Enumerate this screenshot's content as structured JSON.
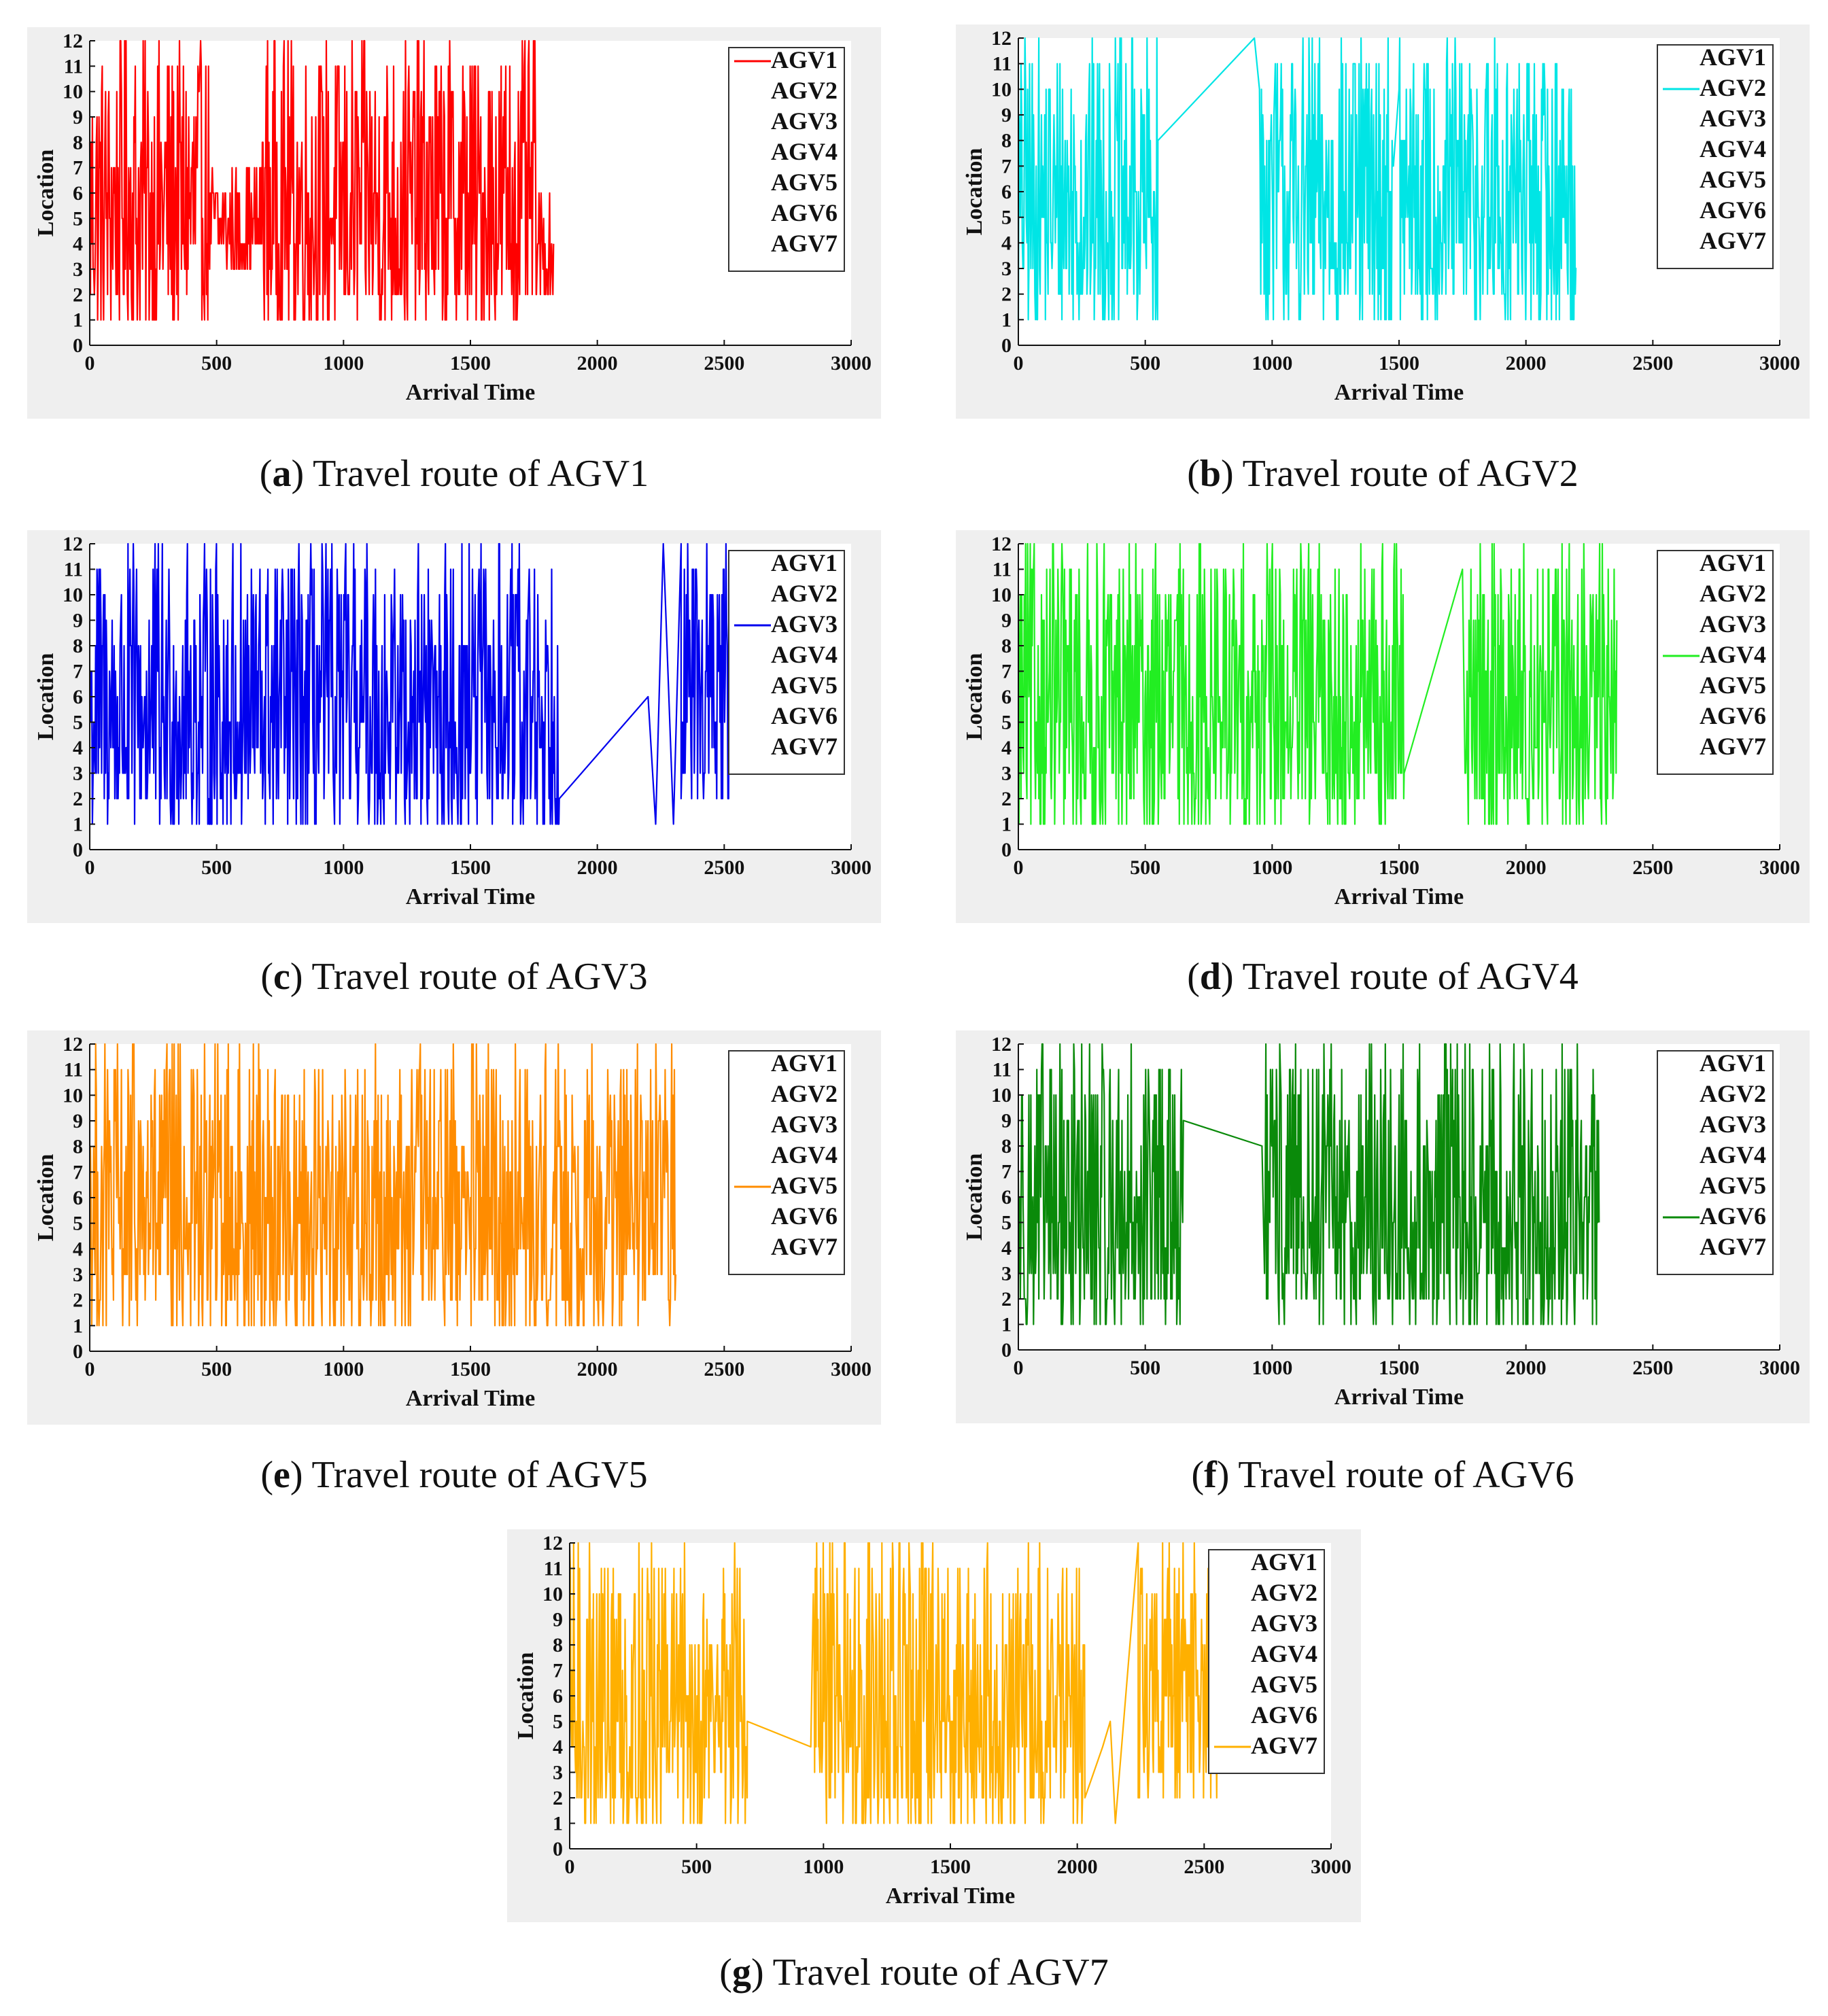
{
  "figure": {
    "captions": [
      {
        "letter": "a",
        "text": "Travel route of AGV1"
      },
      {
        "letter": "b",
        "text": "Travel route of AGV2"
      },
      {
        "letter": "c",
        "text": "Travel route of AGV3"
      },
      {
        "letter": "d",
        "text": "Travel route of AGV4"
      },
      {
        "letter": "e",
        "text": "Travel route of AGV5"
      },
      {
        "letter": "f",
        "text": "Travel route of AGV6"
      },
      {
        "letter": "g",
        "text": "Travel route of AGV7"
      }
    ]
  },
  "chart_data": [
    {
      "type": "line",
      "series_name": "AGV1",
      "color": "#ff0000",
      "xlabel": "Arrival Time",
      "ylabel": "Location",
      "xlim": [
        0,
        3000
      ],
      "ylim": [
        0,
        12
      ],
      "xticks": [
        0,
        500,
        1000,
        1500,
        2000,
        2500,
        3000
      ],
      "yticks": [
        0,
        1,
        2,
        3,
        4,
        5,
        6,
        7,
        8,
        9,
        10,
        11,
        12
      ],
      "legend": [
        "AGV1",
        "AGV2",
        "AGV3",
        "AGV4",
        "AGV5",
        "AGV6",
        "AGV7"
      ],
      "highlight": 0,
      "segments": [
        {
          "kind": "dense",
          "x_start": 0,
          "x_end": 470
        },
        {
          "kind": "dense",
          "x_start": 470,
          "x_end": 680,
          "low": 3,
          "high": 7
        },
        {
          "kind": "dense",
          "x_start": 680,
          "x_end": 1760
        },
        {
          "kind": "dense",
          "x_start": 1760,
          "x_end": 1830,
          "low": 2,
          "high": 6
        }
      ]
    },
    {
      "type": "line",
      "series_name": "AGV2",
      "color": "#00e5e5",
      "xlabel": "Arrival Time",
      "ylabel": "Location",
      "xlim": [
        0,
        3000
      ],
      "ylim": [
        0,
        12
      ],
      "xticks": [
        0,
        500,
        1000,
        1500,
        2000,
        2500,
        3000
      ],
      "yticks": [
        0,
        1,
        2,
        3,
        4,
        5,
        6,
        7,
        8,
        9,
        10,
        11,
        12
      ],
      "legend": [
        "AGV1",
        "AGV2",
        "AGV3",
        "AGV4",
        "AGV5",
        "AGV6",
        "AGV7"
      ],
      "highlight": 1,
      "segments": [
        {
          "kind": "dense",
          "x_start": 0,
          "x_end": 550
        },
        {
          "kind": "line",
          "points": [
            [
              550,
              8
            ],
            [
              930,
              12
            ]
          ]
        },
        {
          "kind": "dense",
          "x_start": 950,
          "x_end": 1480
        },
        {
          "kind": "dense",
          "x_start": 1500,
          "x_end": 2200
        }
      ]
    },
    {
      "type": "line",
      "series_name": "AGV3",
      "color": "#0000ee",
      "xlabel": "Arrival Time",
      "ylabel": "Location",
      "xlim": [
        0,
        3000
      ],
      "ylim": [
        0,
        12
      ],
      "xticks": [
        0,
        500,
        1000,
        1500,
        2000,
        2500,
        3000
      ],
      "yticks": [
        0,
        1,
        2,
        3,
        4,
        5,
        6,
        7,
        8,
        9,
        10,
        11,
        12
      ],
      "legend": [
        "AGV1",
        "AGV2",
        "AGV3",
        "AGV4",
        "AGV5",
        "AGV6",
        "AGV7"
      ],
      "highlight": 2,
      "segments": [
        {
          "kind": "dense",
          "x_start": 0,
          "x_end": 1850
        },
        {
          "kind": "line",
          "points": [
            [
              1850,
              2
            ],
            [
              2200,
              6
            ]
          ]
        },
        {
          "kind": "line",
          "points": [
            [
              2200,
              6
            ],
            [
              2230,
              1
            ],
            [
              2260,
              12
            ],
            [
              2300,
              1
            ],
            [
              2330,
              12
            ]
          ]
        },
        {
          "kind": "dense",
          "x_start": 2330,
          "x_end": 2530,
          "low": 2,
          "high": 12
        }
      ]
    },
    {
      "type": "line",
      "series_name": "AGV4",
      "color": "#22ee22",
      "xlabel": "Arrival Time",
      "ylabel": "Location",
      "xlim": [
        0,
        3000
      ],
      "ylim": [
        0,
        12
      ],
      "xticks": [
        0,
        500,
        1000,
        1500,
        2000,
        2500,
        3000
      ],
      "yticks": [
        0,
        1,
        2,
        3,
        4,
        5,
        6,
        7,
        8,
        9,
        10,
        11,
        12
      ],
      "legend": [
        "AGV1",
        "AGV2",
        "AGV3",
        "AGV4",
        "AGV5",
        "AGV6",
        "AGV7"
      ],
      "highlight": 3,
      "segments": [
        {
          "kind": "dense",
          "x_start": 0,
          "x_end": 1520
        },
        {
          "kind": "line",
          "points": [
            [
              1520,
              3
            ],
            [
              1750,
              11
            ]
          ]
        },
        {
          "kind": "dense",
          "x_start": 1760,
          "x_end": 2360
        }
      ]
    },
    {
      "type": "line",
      "series_name": "AGV5",
      "color": "#ff8c00",
      "xlabel": "Arrival Time",
      "ylabel": "Location",
      "xlim": [
        0,
        3000
      ],
      "ylim": [
        0,
        12
      ],
      "xticks": [
        0,
        500,
        1000,
        1500,
        2000,
        2500,
        3000
      ],
      "yticks": [
        0,
        1,
        2,
        3,
        4,
        5,
        6,
        7,
        8,
        9,
        10,
        11,
        12
      ],
      "legend": [
        "AGV1",
        "AGV2",
        "AGV3",
        "AGV4",
        "AGV5",
        "AGV6",
        "AGV7"
      ],
      "highlight": 4,
      "segments": [
        {
          "kind": "dense",
          "x_start": 0,
          "x_end": 2310
        }
      ]
    },
    {
      "type": "line",
      "series_name": "AGV6",
      "color": "#0a8a0a",
      "xlabel": "Arrival Time",
      "ylabel": "Location",
      "xlim": [
        0,
        3000
      ],
      "ylim": [
        0,
        12
      ],
      "xticks": [
        0,
        500,
        1000,
        1500,
        2000,
        2500,
        3000
      ],
      "yticks": [
        0,
        1,
        2,
        3,
        4,
        5,
        6,
        7,
        8,
        9,
        10,
        11,
        12
      ],
      "legend": [
        "AGV1",
        "AGV2",
        "AGV3",
        "AGV4",
        "AGV5",
        "AGV6",
        "AGV7"
      ],
      "highlight": 5,
      "segments": [
        {
          "kind": "dense",
          "x_start": 0,
          "x_end": 650
        },
        {
          "kind": "line",
          "points": [
            [
              650,
              9
            ],
            [
              960,
              8
            ]
          ]
        },
        {
          "kind": "dense",
          "x_start": 970,
          "x_end": 2290
        }
      ]
    },
    {
      "type": "line",
      "series_name": "AGV7",
      "color": "#ffb000",
      "xlabel": "Arrival Time",
      "ylabel": "Location",
      "xlim": [
        0,
        3000
      ],
      "ylim": [
        0,
        12
      ],
      "xticks": [
        0,
        500,
        1000,
        1500,
        2000,
        2500,
        3000
      ],
      "yticks": [
        0,
        1,
        2,
        3,
        4,
        5,
        6,
        7,
        8,
        9,
        10,
        11,
        12
      ],
      "legend": [
        "AGV1",
        "AGV2",
        "AGV3",
        "AGV4",
        "AGV5",
        "AGV6",
        "AGV7"
      ],
      "highlight": 6,
      "segments": [
        {
          "kind": "dense",
          "x_start": 0,
          "x_end": 700
        },
        {
          "kind": "line",
          "points": [
            [
              700,
              5
            ],
            [
              950,
              4
            ]
          ]
        },
        {
          "kind": "dense",
          "x_start": 960,
          "x_end": 2030
        },
        {
          "kind": "line",
          "points": [
            [
              2030,
              2
            ],
            [
              2100,
              4
            ],
            [
              2130,
              5
            ],
            [
              2150,
              1
            ],
            [
              2240,
              12
            ]
          ]
        },
        {
          "kind": "dense",
          "x_start": 2240,
          "x_end": 2560,
          "low": 2,
          "high": 12
        }
      ]
    }
  ]
}
